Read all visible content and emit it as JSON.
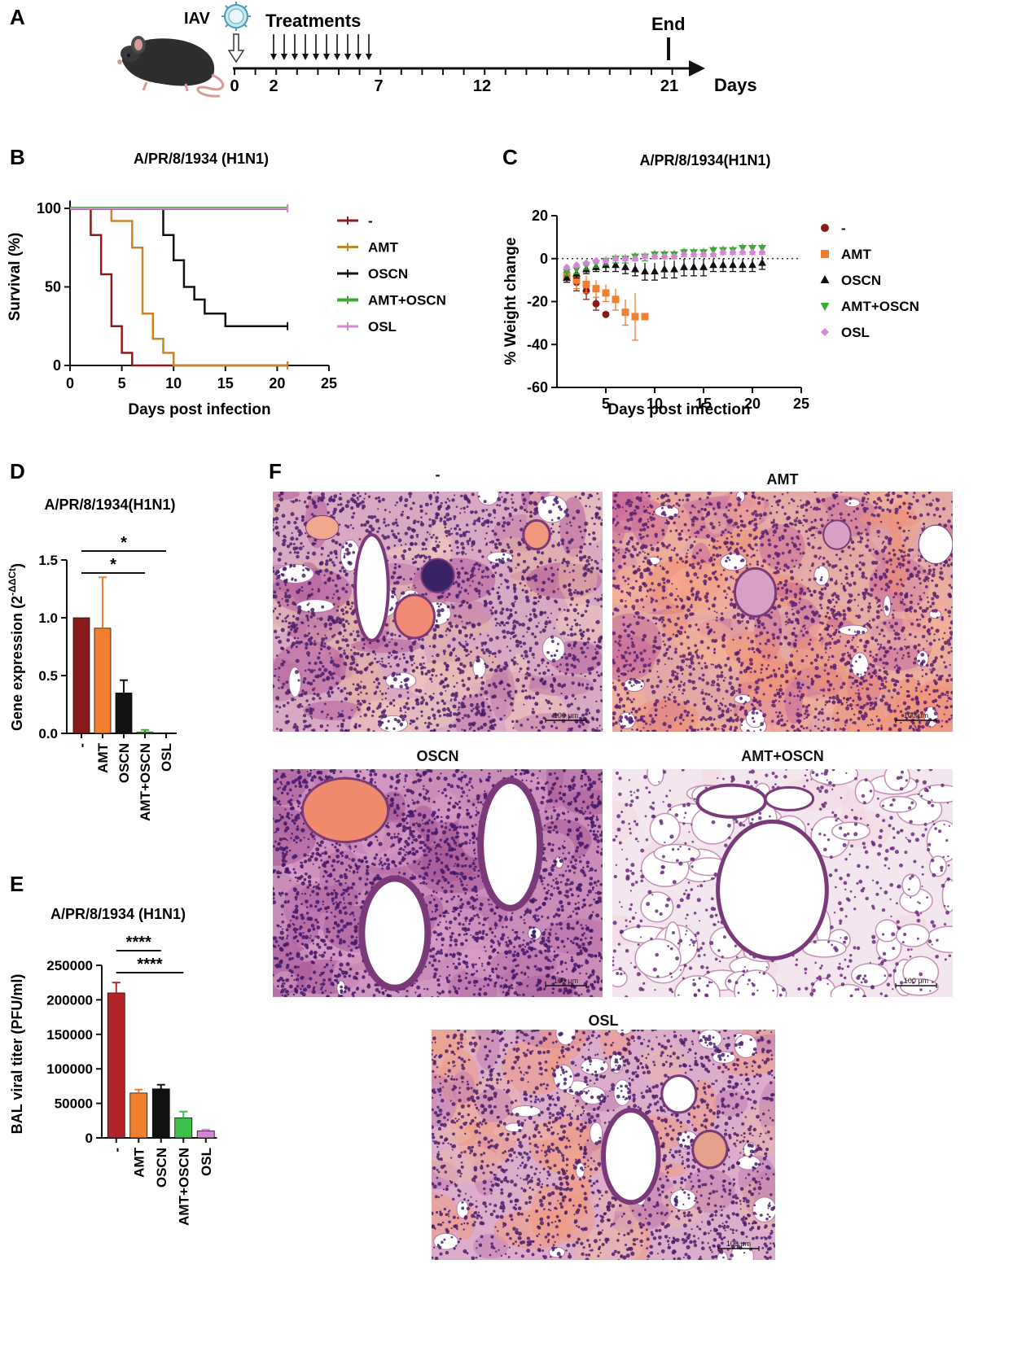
{
  "panels": {
    "A": {
      "letter": "A",
      "virus_label": "IAV",
      "treatments_label": "Treatments",
      "end_label": "End",
      "axis_unit": "Days",
      "ticks": [
        "0",
        "2",
        "7",
        "12",
        "21"
      ],
      "treatment_arrow_count": 10
    },
    "F": {
      "letter": "F",
      "images": [
        {
          "label": "-",
          "scale_bar": "100 μm"
        },
        {
          "label": "AMT",
          "scale_bar": "100 μm"
        },
        {
          "label": "OSCN",
          "scale_bar": "100 μm"
        },
        {
          "label": "AMT+OSCN",
          "scale_bar": "100 μm"
        },
        {
          "label": "OSL",
          "scale_bar": "100 μm"
        }
      ]
    }
  },
  "colors": {
    "untreated": "#8b1a1a",
    "AMT_line": "#c8832e",
    "AMT_marker": "#f08030",
    "OSCN": "#111111",
    "AMT_OSCN": "#3aaa35",
    "OSL": "#d486d4"
  },
  "chart_data": [
    {
      "id": "B",
      "letter": "B",
      "type": "line",
      "title": "A/PR/8/1934 (H1N1)",
      "xlabel": "Days post infection",
      "ylabel": "Survival (%)",
      "xlim": [
        0,
        25
      ],
      "ylim": [
        0,
        100
      ],
      "xticks": [
        "0",
        "5",
        "10",
        "15",
        "20",
        "25"
      ],
      "yticks": [
        "0",
        "50",
        "100"
      ],
      "legend_position": "right",
      "series": [
        {
          "name": "-",
          "color": "#8b1a1a",
          "x": [
            0,
            2,
            3,
            4,
            5,
            6,
            21
          ],
          "y": [
            100,
            83,
            58,
            25,
            8,
            0,
            0
          ]
        },
        {
          "name": "AMT",
          "color": "#c8832e",
          "x": [
            0,
            4,
            6,
            7,
            8,
            9,
            10,
            21
          ],
          "y": [
            100,
            92,
            75,
            33,
            17,
            8,
            0,
            0
          ]
        },
        {
          "name": "OSCN",
          "color": "#111111",
          "x": [
            0,
            9,
            10,
            11,
            12,
            13,
            15,
            21
          ],
          "y": [
            100,
            83,
            67,
            50,
            42,
            33,
            25,
            25
          ]
        },
        {
          "name": "AMT+OSCN",
          "color": "#3aaa35",
          "x": [
            0,
            21
          ],
          "y": [
            100,
            100
          ]
        },
        {
          "name": "OSL",
          "color": "#d486d4",
          "x": [
            0,
            21
          ],
          "y": [
            100,
            100
          ]
        }
      ]
    },
    {
      "id": "C",
      "letter": "C",
      "type": "scatter",
      "title": "A/PR/8/1934(H1N1)",
      "xlabel": "Days post infection",
      "ylabel": "% Weight change",
      "xlim": [
        0,
        25
      ],
      "ylim": [
        -60,
        20
      ],
      "xticks": [
        "5",
        "10",
        "15",
        "20",
        "25"
      ],
      "yticks": [
        "-60",
        "-40",
        "-20",
        "0",
        "20"
      ],
      "legend_position": "right",
      "series": [
        {
          "name": "-",
          "color": "#8b1a1a",
          "marker": "circle",
          "x": [
            1,
            2,
            3,
            4,
            5
          ],
          "y": [
            -7,
            -11,
            -15,
            -21,
            -26
          ],
          "err": [
            3,
            4,
            4,
            3,
            0
          ]
        },
        {
          "name": "AMT",
          "color": "#f08030",
          "marker": "square",
          "x": [
            1,
            2,
            3,
            4,
            5,
            6,
            7,
            8,
            9
          ],
          "y": [
            -8,
            -10,
            -12,
            -14,
            -16,
            -19,
            -25,
            -27,
            -27
          ],
          "err": [
            3,
            4,
            4,
            4,
            4,
            5,
            6,
            11,
            0
          ]
        },
        {
          "name": "OSCN",
          "color": "#111111",
          "marker": "triangle-up",
          "x": [
            1,
            2,
            3,
            4,
            5,
            6,
            7,
            8,
            9,
            10,
            11,
            12,
            13,
            14,
            15,
            16,
            17,
            18,
            19,
            20,
            21
          ],
          "y": [
            -9,
            -7,
            -5,
            -4,
            -3,
            -3,
            -4,
            -5,
            -6,
            -6,
            -5,
            -5,
            -4,
            -4,
            -4,
            -3,
            -3,
            -3,
            -3,
            -3,
            -2
          ],
          "err": [
            2,
            2,
            2,
            2,
            3,
            3,
            3,
            3,
            4,
            4,
            4,
            4,
            4,
            4,
            4,
            3,
            3,
            3,
            3,
            3,
            3
          ]
        },
        {
          "name": "AMT+OSCN",
          "color": "#3aaa35",
          "marker": "triangle-down",
          "x": [
            1,
            2,
            3,
            4,
            5,
            6,
            7,
            8,
            9,
            10,
            11,
            12,
            13,
            14,
            15,
            16,
            17,
            18,
            19,
            20,
            21
          ],
          "y": [
            -6,
            -5,
            -3,
            -2,
            -1,
            0,
            0,
            1,
            1,
            2,
            2,
            2,
            3,
            3,
            3,
            4,
            4,
            4,
            5,
            5,
            5
          ],
          "err": [
            2,
            2,
            2,
            2,
            2,
            2,
            2,
            2,
            2,
            2,
            2,
            2,
            2,
            2,
            2,
            2,
            2,
            2,
            2,
            2,
            2
          ]
        },
        {
          "name": "OSL",
          "color": "#d486d4",
          "marker": "diamond",
          "x": [
            1,
            2,
            3,
            4,
            5,
            6,
            7,
            8,
            9,
            10,
            11,
            12,
            13,
            14,
            15,
            16,
            17,
            18,
            19,
            20,
            21
          ],
          "y": [
            -4,
            -3,
            -2,
            -1,
            -1,
            0,
            0,
            0,
            1,
            1,
            1,
            1,
            2,
            2,
            2,
            2,
            3,
            3,
            3,
            3,
            3
          ],
          "err": [
            1,
            1,
            1,
            1,
            1,
            1,
            1,
            1,
            1,
            1,
            1,
            1,
            1,
            1,
            1,
            1,
            1,
            1,
            1,
            1,
            1
          ]
        }
      ]
    },
    {
      "id": "D",
      "letter": "D",
      "type": "bar",
      "title": "A/PR/8/1934(H1N1)",
      "ylabel": "Gene expression (2",
      "ylabel_sup": "-ΔΔCt",
      "ylabel_close": ")",
      "ylim": [
        0,
        1.5
      ],
      "yticks": [
        "0.0",
        "0.5",
        "1.0",
        "1.5"
      ],
      "categories": [
        "-",
        "AMT",
        "OSCN",
        "AMT+OSCN",
        "OSL"
      ],
      "values": [
        1.0,
        0.91,
        0.35,
        0.01,
        0.005
      ],
      "errors": [
        0,
        0.44,
        0.11,
        0.02,
        0
      ],
      "bar_colors": [
        "#8b1a1a",
        "#f08030",
        "#111111",
        "#3aaa35",
        "#d486d4"
      ],
      "significance": [
        {
          "label": "*",
          "from": 0,
          "to": 4
        },
        {
          "label": "*",
          "from": 0,
          "to": 3
        }
      ]
    },
    {
      "id": "E",
      "letter": "E",
      "type": "bar",
      "title": "A/PR/8/1934 (H1N1)",
      "ylabel": "BAL viral titer (PFU/ml)",
      "ylim": [
        0,
        250000
      ],
      "yticks": [
        "0",
        "50000",
        "100000",
        "150000",
        "200000",
        "250000"
      ],
      "categories": [
        "-",
        "AMT",
        "OSCN",
        "AMT+OSCN",
        "OSL"
      ],
      "values": [
        210000,
        65000,
        71000,
        29000,
        10000
      ],
      "errors": [
        15000,
        5000,
        6000,
        9000,
        2000
      ],
      "bar_colors": [
        "#b3232a",
        "#f08030",
        "#111111",
        "#3bbf4a",
        "#d486d4"
      ],
      "significance": [
        {
          "label": "****",
          "from": 0,
          "to": 2
        },
        {
          "label": "****",
          "from": 0,
          "to": 3
        }
      ]
    }
  ]
}
